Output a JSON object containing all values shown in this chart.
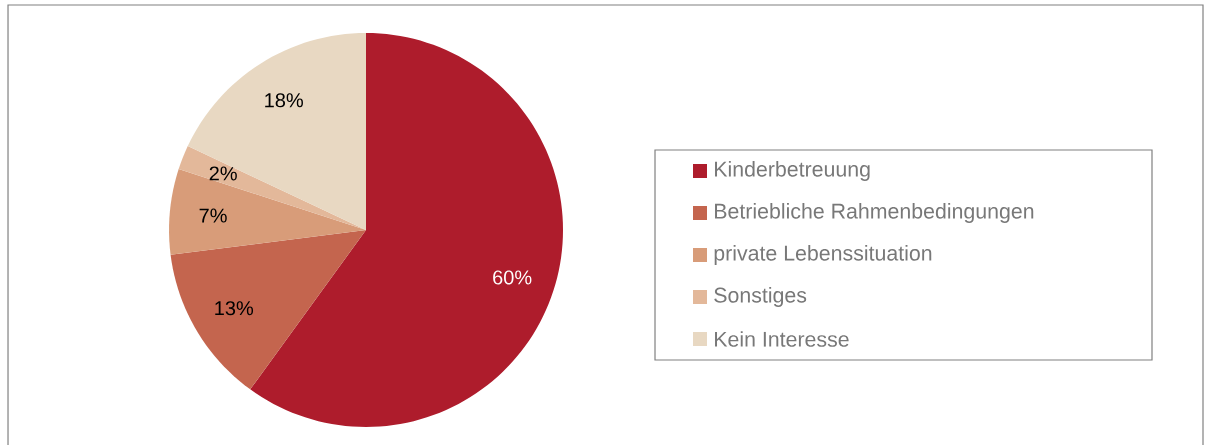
{
  "chart_data": {
    "type": "pie",
    "categories": [
      "Kinderbetreuung",
      "Betriebliche Rahmenbedingungen",
      "private Lebenssituation",
      "Sonstiges",
      "Kein Interesse"
    ],
    "values": [
      60,
      13,
      7,
      2,
      18
    ],
    "value_labels": [
      "60%",
      "13%",
      "7%",
      "2%",
      "18%"
    ],
    "colors": [
      "#ae1c2c",
      "#c4654e",
      "#d89c79",
      "#e3b89a",
      "#e8d8c2"
    ],
    "legend": "right"
  }
}
